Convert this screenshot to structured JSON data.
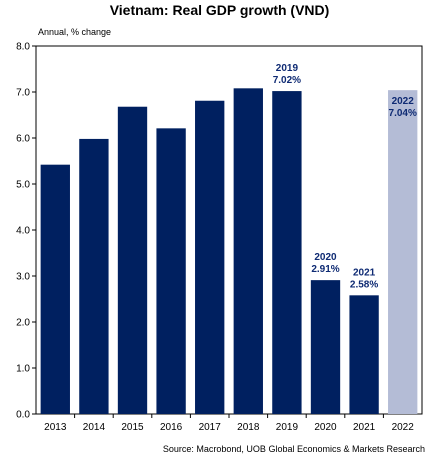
{
  "chart_data": {
    "type": "bar",
    "title": "Vietnam: Real GDP growth (VND)",
    "subtitle": "Annual, % change",
    "categories": [
      "2013",
      "2014",
      "2015",
      "2016",
      "2017",
      "2018",
      "2019",
      "2020",
      "2021",
      "2022"
    ],
    "values": [
      5.42,
      5.98,
      6.68,
      6.21,
      6.81,
      7.08,
      7.02,
      2.91,
      2.58,
      7.04
    ],
    "ylim": [
      0,
      8
    ],
    "yticks": [
      "0.0",
      "1.0",
      "2.0",
      "3.0",
      "4.0",
      "5.0",
      "6.0",
      "7.0",
      "8.0"
    ],
    "grid": false,
    "data_labels": [
      {
        "category": "2019",
        "year": "2019",
        "value": "7.02%"
      },
      {
        "category": "2020",
        "year": "2020",
        "value": "2.91%"
      },
      {
        "category": "2021",
        "year": "2021",
        "value": "2.58%"
      },
      {
        "category": "2022",
        "year": "2022",
        "value": "7.04%"
      }
    ],
    "colors": {
      "actual": "#002060",
      "forecast": "#b4bcd6",
      "label": "#0e2a73"
    },
    "forecast_categories": [
      "2022"
    ],
    "source": "Source: Macrobond, UOB Global Economics & Markets Research"
  }
}
